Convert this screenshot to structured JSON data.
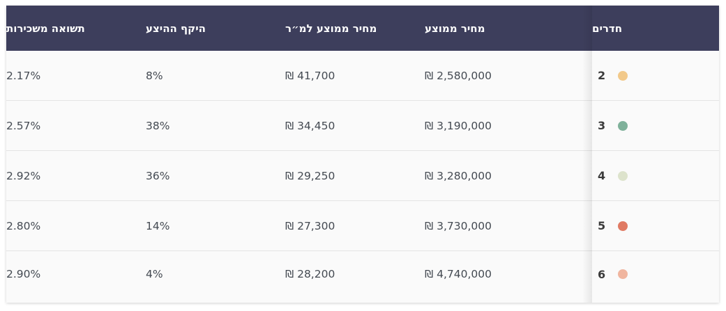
{
  "table": {
    "headers": {
      "rooms": "חדרים",
      "avg_price": "מחיר ממוצע",
      "avg_price_per_sqm": "מחיר ממוצע למ״ר",
      "supply_share": "היקף ההיצע",
      "rental_yield": "תשואה משכירות"
    },
    "rows": [
      {
        "rooms": "2",
        "dot_color": "#f2c98a",
        "avg_price": "₪ 2,580,000",
        "avg_price_per_sqm": "₪ 41,700",
        "supply_share": "8%",
        "rental_yield": "2.17%"
      },
      {
        "rooms": "3",
        "dot_color": "#7fb19a",
        "avg_price": "₪ 3,190,000",
        "avg_price_per_sqm": "₪ 34,450",
        "supply_share": "38%",
        "rental_yield": "2.57%"
      },
      {
        "rooms": "4",
        "dot_color": "#dde3cc",
        "avg_price": "₪ 3,280,000",
        "avg_price_per_sqm": "₪ 29,250",
        "supply_share": "36%",
        "rental_yield": "2.92%"
      },
      {
        "rooms": "5",
        "dot_color": "#e07a63",
        "avg_price": "₪ 3,730,000",
        "avg_price_per_sqm": "₪ 27,300",
        "supply_share": "14%",
        "rental_yield": "2.80%"
      },
      {
        "rooms": "6",
        "dot_color": "#f0b59f",
        "avg_price": "₪ 4,740,000",
        "avg_price_per_sqm": "₪ 28,200",
        "supply_share": "4%",
        "rental_yield": "2.90%"
      }
    ]
  }
}
